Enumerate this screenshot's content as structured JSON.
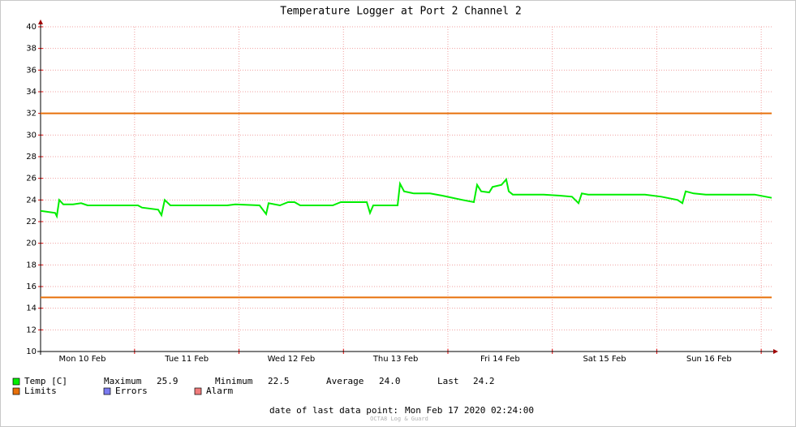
{
  "chart_data": {
    "type": "line",
    "title": "Temperature Logger at Port 2 Channel 2",
    "xlim": [
      "2020-02-10T02:24",
      "2020-02-17T02:24"
    ],
    "xticks": [
      {
        "value": "2020-02-10T12:00",
        "label": "Mon 10 Feb"
      },
      {
        "value": "2020-02-11T12:00",
        "label": "Tue 11 Feb"
      },
      {
        "value": "2020-02-12T12:00",
        "label": "Wed 12 Feb"
      },
      {
        "value": "2020-02-13T12:00",
        "label": "Thu 13 Feb"
      },
      {
        "value": "2020-02-14T12:00",
        "label": "Fri 14 Feb"
      },
      {
        "value": "2020-02-15T12:00",
        "label": "Sat 15 Feb"
      },
      {
        "value": "2020-02-16T12:00",
        "label": "Sun 16 Feb"
      }
    ],
    "xgrid": [
      "2020-02-11T00:00",
      "2020-02-12T00:00",
      "2020-02-13T00:00",
      "2020-02-14T00:00",
      "2020-02-15T00:00",
      "2020-02-16T00:00",
      "2020-02-17T00:00"
    ],
    "ylim": [
      10,
      40
    ],
    "yticks": [
      10,
      12,
      14,
      16,
      18,
      20,
      22,
      24,
      26,
      28,
      30,
      32,
      34,
      36,
      38,
      40
    ],
    "grid": true,
    "x": [
      "2020-02-10T02:24",
      "2020-02-10T05:45",
      "2020-02-10T06:08",
      "2020-02-10T06:41",
      "2020-02-10T07:37",
      "2020-02-10T09:51",
      "2020-02-10T11:43",
      "2020-02-10T13:13",
      "2020-02-11T00:46",
      "2020-02-11T01:42",
      "2020-02-11T05:26",
      "2020-02-11T06:11",
      "2020-02-11T06:56",
      "2020-02-11T08:14",
      "2020-02-11T21:17",
      "2020-02-11T23:09",
      "2020-02-12T04:44",
      "2020-02-12T06:14",
      "2020-02-12T06:48",
      "2020-02-12T09:24",
      "2020-02-12T11:16",
      "2020-02-12T12:46",
      "2020-02-12T14:04",
      "2020-02-12T21:31",
      "2020-02-12T23:23",
      "2020-02-13T05:21",
      "2020-02-13T06:06",
      "2020-02-13T06:51",
      "2020-02-13T12:26",
      "2020-02-13T13:00",
      "2020-02-13T13:56",
      "2020-02-13T16:10",
      "2020-02-13T19:54",
      "2020-02-13T22:42",
      "2020-02-14T03:21",
      "2020-02-14T05:58",
      "2020-02-14T06:43",
      "2020-02-14T07:39",
      "2020-02-14T09:30",
      "2020-02-14T10:15",
      "2020-02-14T12:18",
      "2020-02-14T13:25",
      "2020-02-14T13:59",
      "2020-02-14T14:55",
      "2020-02-14T22:00",
      "2020-02-15T01:44",
      "2020-02-15T04:31",
      "2020-02-15T06:01",
      "2020-02-15T06:46",
      "2020-02-15T08:15",
      "2020-02-15T21:18",
      "2020-02-16T01:02",
      "2020-02-16T04:46",
      "2020-02-16T05:53",
      "2020-02-16T06:38",
      "2020-02-16T08:29",
      "2020-02-16T11:17",
      "2020-02-16T22:29",
      "2020-02-17T02:24"
    ],
    "series": [
      {
        "name": "Temp [C]",
        "color": "#00ee00",
        "values": [
          23.0,
          22.8,
          22.5,
          24.0,
          23.6,
          23.6,
          23.7,
          23.5,
          23.5,
          23.3,
          23.1,
          22.6,
          24.0,
          23.5,
          23.5,
          23.6,
          23.5,
          22.7,
          23.7,
          23.5,
          23.8,
          23.8,
          23.5,
          23.5,
          23.8,
          23.8,
          22.8,
          23.5,
          23.5,
          25.5,
          24.8,
          24.6,
          24.6,
          24.4,
          24.0,
          23.8,
          25.4,
          24.8,
          24.7,
          25.2,
          25.4,
          25.9,
          24.8,
          24.5,
          24.5,
          24.4,
          24.3,
          23.7,
          24.6,
          24.5,
          24.5,
          24.3,
          24.0,
          23.7,
          24.8,
          24.6,
          24.5,
          24.5,
          24.2
        ]
      }
    ],
    "limits": {
      "name": "Limits",
      "color": "#e8700a",
      "values": [
        32,
        15
      ]
    },
    "legend_extra": [
      {
        "name": "Errors",
        "color": "#7b7bf0"
      },
      {
        "name": "Alarm",
        "color": "#f07b7b"
      }
    ],
    "stats": [
      {
        "name": "Maximum",
        "value": 25.9
      },
      {
        "name": "Minimum",
        "value": 22.5
      },
      {
        "name": "Average",
        "value": 24.0,
        "label": "24.0"
      },
      {
        "name": "Last",
        "value": 24.2
      }
    ],
    "footer_label": "date of last data point:",
    "footer_value": "Mon Feb 17 2020 02:24:00",
    "watermark": "OCTA8 Log & Guard"
  }
}
